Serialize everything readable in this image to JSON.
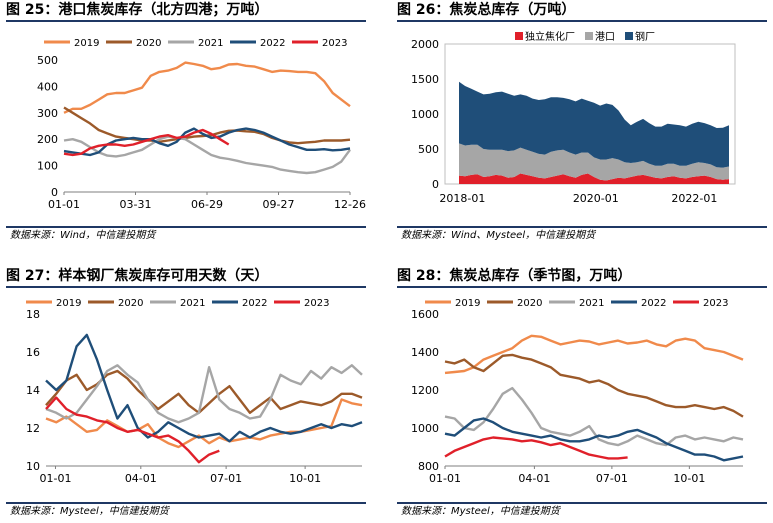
{
  "panels": [
    {
      "title": "图 25：港口焦炭库存（北方四港；万吨）",
      "source": "数据来源：Wind，中信建投期货",
      "chart_data": {
        "type": "line",
        "x_ticks": [
          "01-01",
          "03-31",
          "06-29",
          "09-27",
          "12-26"
        ],
        "ylim": [
          0,
          500
        ],
        "y_ticks": [
          0,
          100,
          200,
          300,
          400,
          500
        ],
        "legend_position": "top",
        "series": [
          {
            "name": "2019",
            "color": "#f08a4b",
            "values": [
              300,
              315,
              315,
              330,
              350,
              370,
              375,
              375,
              385,
              395,
              440,
              455,
              460,
              470,
              490,
              485,
              478,
              465,
              470,
              483,
              485,
              478,
              475,
              465,
              455,
              460,
              458,
              455,
              455,
              450,
              420,
              375,
              350,
              325
            ]
          },
          {
            "name": "2020",
            "color": "#9c5a2a",
            "values": [
              320,
              300,
              280,
              260,
              235,
              222,
              210,
              205,
              200,
              195,
              195,
              190,
              195,
              200,
              205,
              210,
              212,
              215,
              225,
              232,
              233,
              230,
              228,
              220,
              205,
              195,
              188,
              185,
              188,
              190,
              195,
              195,
              195,
              198
            ]
          },
          {
            "name": "2021",
            "color": "#a6a6a6",
            "values": [
              195,
              200,
              190,
              170,
              150,
              138,
              135,
              140,
              150,
              160,
              180,
              200,
              210,
              205,
              200,
              180,
              160,
              140,
              130,
              125,
              118,
              110,
              105,
              100,
              95,
              85,
              80,
              75,
              72,
              75,
              85,
              95,
              115,
              160
            ]
          },
          {
            "name": "2022",
            "color": "#1f4e79",
            "values": [
              155,
              150,
              145,
              140,
              150,
              180,
              195,
              200,
              205,
              200,
              200,
              185,
              175,
              190,
              225,
              240,
              220,
              205,
              210,
              225,
              235,
              240,
              235,
              225,
              210,
              195,
              180,
              170,
              160,
              160,
              162,
              158,
              160,
              165
            ]
          },
          {
            "name": "2023",
            "color": "#e0202a",
            "values": [
              145,
              140,
              145,
              165,
              175,
              180,
              180,
              175,
              180,
              190,
              200,
              210,
              215,
              205,
              210,
              225,
              235,
              220,
              200,
              180
            ]
          }
        ]
      }
    },
    {
      "title": "图 26：焦炭总库存（万吨）",
      "source": "数据来源：Wind、Mysteel，中信建投期货",
      "chart_data": {
        "type": "area",
        "stacked": true,
        "x_ticks": [
          "2018-01",
          "2020-01",
          "2022-01"
        ],
        "ylim": [
          0,
          2000
        ],
        "y_ticks": [
          0,
          500,
          1000,
          1500,
          2000
        ],
        "legend_position": "top",
        "series": [
          {
            "name": "独立焦化厂",
            "color": "#e0202a",
            "values": [
              120,
              110,
              130,
              140,
              100,
              110,
              130,
              120,
              90,
              100,
              150,
              130,
              110,
              90,
              80,
              100,
              120,
              140,
              110,
              90,
              130,
              150,
              100,
              60,
              50,
              70,
              90,
              80,
              100,
              120,
              130,
              110,
              90,
              80,
              100,
              110,
              90,
              80,
              100,
              110,
              120,
              100,
              70,
              60,
              70
            ]
          },
          {
            "name": "港口",
            "color": "#a6a6a6",
            "values": [
              460,
              440,
              430,
              420,
              400,
              380,
              360,
              370,
              380,
              380,
              370,
              360,
              350,
              340,
              340,
              360,
              360,
              350,
              340,
              330,
              320,
              300,
              280,
              290,
              300,
              300,
              260,
              230,
              200,
              190,
              200,
              180,
              170,
              180,
              190,
              180,
              170,
              180,
              190,
              200,
              180,
              180,
              170,
              175,
              180
            ]
          },
          {
            "name": "钢厂",
            "color": "#1f4e79",
            "values": [
              880,
              850,
              800,
              760,
              780,
              800,
              820,
              830,
              820,
              780,
              760,
              770,
              760,
              770,
              790,
              780,
              760,
              740,
              760,
              760,
              770,
              740,
              780,
              770,
              800,
              760,
              700,
              610,
              540,
              580,
              600,
              580,
              560,
              560,
              570,
              560,
              580,
              560,
              570,
              580,
              570,
              560,
              560,
              570,
              590
            ]
          }
        ]
      }
    },
    {
      "title": "图 27：样本钢厂焦炭库存可用天数（天）",
      "source": "数据来源：Mysteel，中信建投期货",
      "chart_data": {
        "type": "line",
        "x_ticks": [
          "01-01",
          "04-01",
          "07-01",
          "10-01"
        ],
        "ylim": [
          10,
          18
        ],
        "y_ticks": [
          10,
          12,
          14,
          16,
          18
        ],
        "legend_position": "top",
        "series": [
          {
            "name": "2019",
            "color": "#f08a4b",
            "values": [
              12.5,
              12.3,
              12.6,
              12.2,
              11.8,
              11.9,
              12.4,
              12.1,
              11.8,
              11.9,
              12.2,
              11.5,
              11.2,
              11.0,
              11.3,
              11.6,
              11.2,
              11.5,
              11.3,
              11.4,
              11.5,
              11.4,
              11.6,
              11.7,
              11.8,
              11.8,
              11.9,
              12.0,
              12.1,
              13.5,
              13.3,
              13.2
            ]
          },
          {
            "name": "2020",
            "color": "#9c5a2a",
            "values": [
              13.2,
              13.8,
              14.5,
              14.8,
              14.0,
              14.3,
              14.8,
              15.0,
              14.6,
              14.0,
              13.5,
              13.0,
              13.4,
              13.8,
              13.2,
              12.8,
              13.3,
              13.8,
              14.2,
              13.5,
              12.8,
              13.2,
              13.6,
              13.0,
              13.2,
              13.4,
              13.3,
              13.2,
              13.4,
              13.8,
              13.8,
              13.6
            ]
          },
          {
            "name": "2021",
            "color": "#a6a6a6",
            "values": [
              13.0,
              12.8,
              12.5,
              12.8,
              13.5,
              14.2,
              15.0,
              15.3,
              14.8,
              14.4,
              13.5,
              12.8,
              12.5,
              12.3,
              12.5,
              12.8,
              15.2,
              13.5,
              13.0,
              12.8,
              12.5,
              12.6,
              13.5,
              14.8,
              14.5,
              14.3,
              15.0,
              14.6,
              15.2,
              14.9,
              15.3,
              14.8
            ]
          },
          {
            "name": "2022",
            "color": "#1f4e79",
            "values": [
              14.5,
              14.0,
              14.5,
              16.3,
              16.9,
              15.6,
              14.0,
              12.5,
              13.2,
              12.0,
              11.5,
              11.8,
              12.3,
              12.0,
              11.7,
              11.5,
              11.6,
              11.7,
              11.3,
              11.8,
              11.5,
              11.8,
              12.0,
              11.8,
              11.7,
              11.8,
              12.0,
              12.2,
              12.0,
              12.2,
              12.1,
              12.3
            ]
          },
          {
            "name": "2023",
            "color": "#e0202a",
            "values": [
              13.0,
              13.6,
              13.0,
              12.7,
              12.6,
              12.4,
              12.3,
              12.0,
              11.8,
              11.9,
              11.7,
              11.5,
              11.6,
              11.3,
              10.8,
              10.2,
              10.6,
              10.8
            ]
          }
        ]
      }
    },
    {
      "title": "图 28：焦炭总库存（季节图，万吨）",
      "source": "数据来源：Mysteel，中信建投期货",
      "chart_data": {
        "type": "line",
        "x_ticks": [
          "01-01",
          "04-01",
          "07-01",
          "10-01"
        ],
        "ylim": [
          800,
          1600
        ],
        "y_ticks": [
          800,
          1000,
          1200,
          1400,
          1600
        ],
        "legend_position": "top",
        "series": [
          {
            "name": "2019",
            "color": "#f08a4b",
            "values": [
              1290,
              1295,
              1300,
              1320,
              1360,
              1380,
              1400,
              1420,
              1460,
              1485,
              1480,
              1460,
              1440,
              1450,
              1460,
              1455,
              1440,
              1450,
              1460,
              1445,
              1450,
              1460,
              1440,
              1430,
              1460,
              1470,
              1460,
              1420,
              1410,
              1400,
              1380,
              1360
            ]
          },
          {
            "name": "2020",
            "color": "#9c5a2a",
            "values": [
              1350,
              1340,
              1360,
              1320,
              1300,
              1340,
              1380,
              1385,
              1370,
              1360,
              1340,
              1320,
              1280,
              1270,
              1260,
              1240,
              1250,
              1230,
              1200,
              1180,
              1170,
              1160,
              1140,
              1120,
              1110,
              1110,
              1120,
              1110,
              1100,
              1110,
              1090,
              1060
            ]
          },
          {
            "name": "2021",
            "color": "#a6a6a6",
            "values": [
              1060,
              1050,
              1000,
              990,
              1030,
              1100,
              1180,
              1210,
              1150,
              1080,
              1000,
              980,
              970,
              960,
              980,
              1010,
              940,
              920,
              910,
              930,
              960,
              940,
              920,
              910,
              950,
              960,
              940,
              950,
              940,
              930,
              950,
              940
            ]
          },
          {
            "name": "2022",
            "color": "#1f4e79",
            "values": [
              970,
              960,
              1000,
              1040,
              1050,
              1030,
              1000,
              980,
              970,
              960,
              950,
              960,
              940,
              930,
              930,
              940,
              960,
              950,
              960,
              980,
              990,
              970,
              950,
              920,
              900,
              880,
              860,
              860,
              850,
              830,
              840,
              850
            ]
          },
          {
            "name": "2023",
            "color": "#e0202a",
            "values": [
              850,
              880,
              900,
              920,
              940,
              950,
              945,
              940,
              930,
              935,
              925,
              910,
              920,
              900,
              880,
              860,
              850,
              840,
              840,
              845
            ]
          }
        ]
      }
    }
  ]
}
